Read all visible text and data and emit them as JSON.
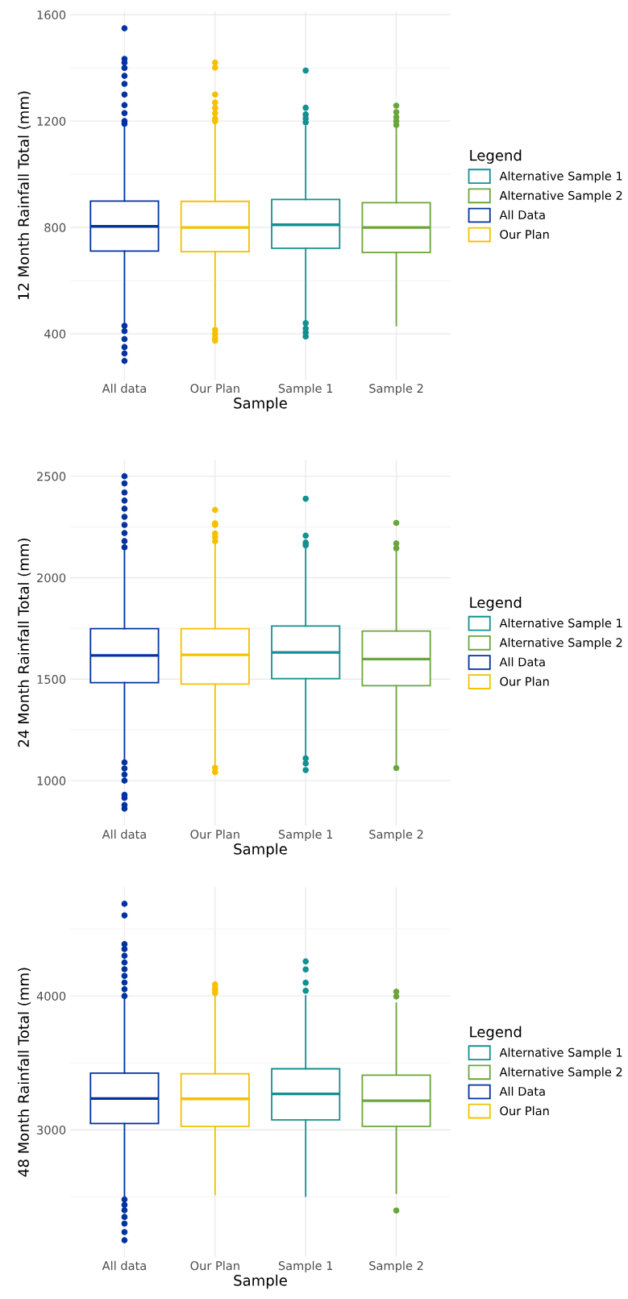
{
  "chart_data": [
    {
      "type": "box",
      "xlabel": "Sample",
      "ylabel": "12 Month Rainfall Total (mm)",
      "legend_title": "Legend",
      "legend": "right",
      "grid": true,
      "ylim": [
        227,
        1613
      ],
      "yticks": [
        400,
        800,
        1200,
        1600
      ],
      "categories": [
        "All data",
        "Our Plan",
        "Sample 1",
        "Sample 2"
      ],
      "series": [
        {
          "name": "Alternative Sample 1",
          "color": "#13908f",
          "boxes": [
            null,
            null,
            {
              "low": 450,
              "q1": 722,
              "median": 810,
              "q3": 905,
              "high": 1180,
              "outliers": [
                1390,
                1250,
                1225,
                1210,
                1195,
                440,
                420,
                405,
                390
              ]
            },
            null
          ]
        },
        {
          "name": "Alternative Sample 2",
          "color": "#6aa63a",
          "boxes": [
            null,
            null,
            null,
            {
              "low": 431,
              "q1": 706,
              "median": 800,
              "q3": 893,
              "high": 1172,
              "outliers": [
                1258,
                1234,
                1215,
                1200,
                1185
              ]
            }
          ]
        },
        {
          "name": "All Data",
          "color": "#0033a0",
          "boxes": [
            {
              "low": 433,
              "q1": 711,
              "median": 804,
              "q3": 899,
              "high": 1182,
              "outliers": [
                1549,
                1434,
                1420,
                1400,
                1370,
                1340,
                1300,
                1260,
                1230,
                1200,
                1190,
                430,
                410,
                380,
                350,
                326,
                298
              ]
            },
            null,
            null,
            null
          ]
        },
        {
          "name": "Our Plan",
          "color": "#f5c000",
          "boxes": [
            null,
            {
              "low": 430,
              "q1": 709,
              "median": 800,
              "q3": 898,
              "high": 1193,
              "outliers": [
                1420,
                1401,
                1300,
                1270,
                1250,
                1230,
                1210,
                1200,
                415,
                400,
                385,
                374
              ]
            },
            null,
            null
          ]
        }
      ]
    },
    {
      "type": "box",
      "xlabel": "Sample",
      "ylabel": "24 Month Rainfall Total (mm)",
      "legend_title": "Legend",
      "legend": "right",
      "grid": true,
      "ylim": [
        778,
        2582
      ],
      "yticks": [
        1000,
        1500,
        2000,
        2500
      ],
      "categories": [
        "All data",
        "Our Plan",
        "Sample 1",
        "Sample 2"
      ],
      "series": [
        {
          "name": "Alternative Sample 1",
          "color": "#13908f",
          "boxes": [
            null,
            null,
            {
              "low": 1120,
              "q1": 1503,
              "median": 1632,
              "q3": 1762,
              "high": 2162,
              "outliers": [
                2389,
                2207,
                2173,
                2160,
                1110,
                1085,
                1052
              ]
            },
            null
          ]
        },
        {
          "name": "Alternative Sample 2",
          "color": "#6aa63a",
          "boxes": [
            null,
            null,
            null,
            {
              "low": 1080,
              "q1": 1468,
              "median": 1599,
              "q3": 1737,
              "high": 2141,
              "outliers": [
                2270,
                2169,
                2145,
                1062
              ]
            }
          ]
        },
        {
          "name": "All Data",
          "color": "#0033a0",
          "boxes": [
            {
              "low": 1099,
              "q1": 1483,
              "median": 1617,
              "q3": 1749,
              "high": 2141,
              "outliers": [
                2500,
                2465,
                2420,
                2380,
                2340,
                2300,
                2260,
                2220,
                2180,
                2150,
                1090,
                1060,
                1030,
                1000,
                930,
                915,
                880,
                862
              ]
            },
            null,
            null,
            null
          ]
        },
        {
          "name": "Our Plan",
          "color": "#f5c000",
          "boxes": [
            null,
            {
              "low": 1070,
              "q1": 1476,
              "median": 1620,
              "q3": 1749,
              "high": 2169,
              "outliers": [
                2334,
                2268,
                2260,
                2218,
                2200,
                2180,
                1063,
                1042
              ]
            },
            null,
            null
          ]
        }
      ]
    },
    {
      "type": "box",
      "xlabel": "Sample",
      "ylabel": "48 Month Rainfall Total (mm)",
      "legend_title": "Legend",
      "legend": "right",
      "grid": true,
      "ylim": [
        2050,
        4814
      ],
      "yticks": [
        3000,
        4000
      ],
      "categories": [
        "All data",
        "Our Plan",
        "Sample 1",
        "Sample 2"
      ],
      "series": [
        {
          "name": "Alternative Sample 1",
          "color": "#13908f",
          "boxes": [
            null,
            null,
            {
              "low": 2505,
              "q1": 3075,
              "median": 3269,
              "q3": 3456,
              "high": 4000,
              "outliers": [
                4258,
                4198,
                4099,
                4039
              ]
            },
            null
          ]
        },
        {
          "name": "Alternative Sample 2",
          "color": "#6aa63a",
          "boxes": [
            null,
            null,
            null,
            {
              "low": 2527,
              "q1": 3026,
              "median": 3217,
              "q3": 3409,
              "high": 3946,
              "outliers": [
                4032,
                3996,
                2398
              ]
            }
          ]
        },
        {
          "name": "All Data",
          "color": "#0033a0",
          "boxes": [
            {
              "low": 2499,
              "q1": 3047,
              "median": 3234,
              "q3": 3424,
              "high": 3978,
              "outliers": [
                4688,
                4602,
                4387,
                4350,
                4300,
                4250,
                4200,
                4150,
                4100,
                4050,
                4000,
                2480,
                2440,
                2400,
                2350,
                2300,
                2237,
                2176
              ]
            },
            null,
            null,
            null
          ]
        },
        {
          "name": "Our Plan",
          "color": "#f5c000",
          "boxes": [
            null,
            {
              "low": 2516,
              "q1": 3026,
              "median": 3232,
              "q3": 3419,
              "high": 4000,
              "outliers": [
                4086,
                4060,
                4040,
                4022
              ]
            },
            null,
            null
          ]
        }
      ]
    }
  ]
}
